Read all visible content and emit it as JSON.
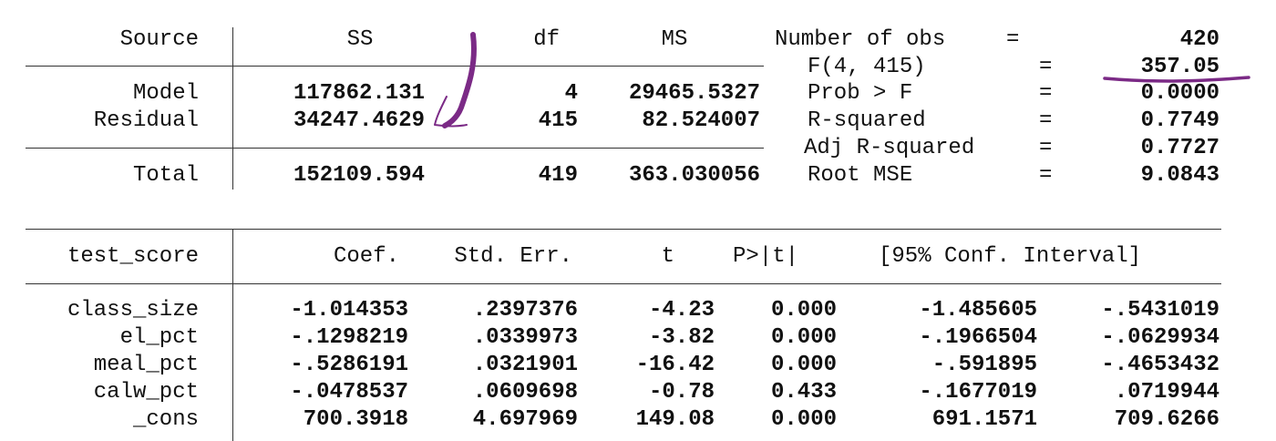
{
  "anova": {
    "headers": {
      "source": "Source",
      "ss": "SS",
      "df": "df",
      "ms": "MS"
    },
    "rows": [
      {
        "source": "Model",
        "ss": "117862.131",
        "df": "4",
        "ms": "29465.5327"
      },
      {
        "source": "Residual",
        "ss": "34247.4629",
        "df": "415",
        "ms": "82.524007"
      },
      {
        "source": "Total",
        "ss": "152109.594",
        "df": "419",
        "ms": "363.030056"
      }
    ]
  },
  "stats": [
    {
      "label": "Number of obs",
      "eq": "=",
      "value": "420"
    },
    {
      "label": "F(4, 415)",
      "eq": "=",
      "value": "357.05"
    },
    {
      "label": "Prob > F",
      "eq": "=",
      "value": "0.0000"
    },
    {
      "label": "R-squared",
      "eq": "=",
      "value": "0.7749"
    },
    {
      "label": "Adj R-squared",
      "eq": "=",
      "value": "0.7727"
    },
    {
      "label": "Root MSE",
      "eq": "=",
      "value": "9.0843"
    }
  ],
  "coef": {
    "headers": {
      "var": "test_score",
      "coef": "Coef.",
      "se": "Std. Err.",
      "t": "t",
      "p": "P>|t|",
      "ci": "[95% Conf. Interval]"
    },
    "rows": [
      {
        "var": "class_size",
        "coef": "-1.014353",
        "se": ".2397376",
        "t": "-4.23",
        "p": "0.000",
        "lo": "-1.485605",
        "hi": "-.5431019"
      },
      {
        "var": "el_pct",
        "coef": "-.1298219",
        "se": ".0339973",
        "t": "-3.82",
        "p": "0.000",
        "lo": "-.1966504",
        "hi": "-.0629934"
      },
      {
        "var": "meal_pct",
        "coef": "-.5286191",
        "se": ".0321901",
        "t": "-16.42",
        "p": "0.000",
        "lo": "-.591895",
        "hi": "-.4653432"
      },
      {
        "var": "calw_pct",
        "coef": "-.0478537",
        "se": ".0609698",
        "t": "-0.78",
        "p": "0.433",
        "lo": "-.1677019",
        "hi": ".0719944"
      },
      {
        "var": "_cons",
        "coef": "700.3918",
        "se": "4.697969",
        "t": "149.08",
        "p": "0.000",
        "lo": "691.1571",
        "hi": "709.6266"
      }
    ]
  },
  "colors": {
    "annotation": "#7b2a86",
    "rule": "#333333",
    "text": "#111111"
  }
}
